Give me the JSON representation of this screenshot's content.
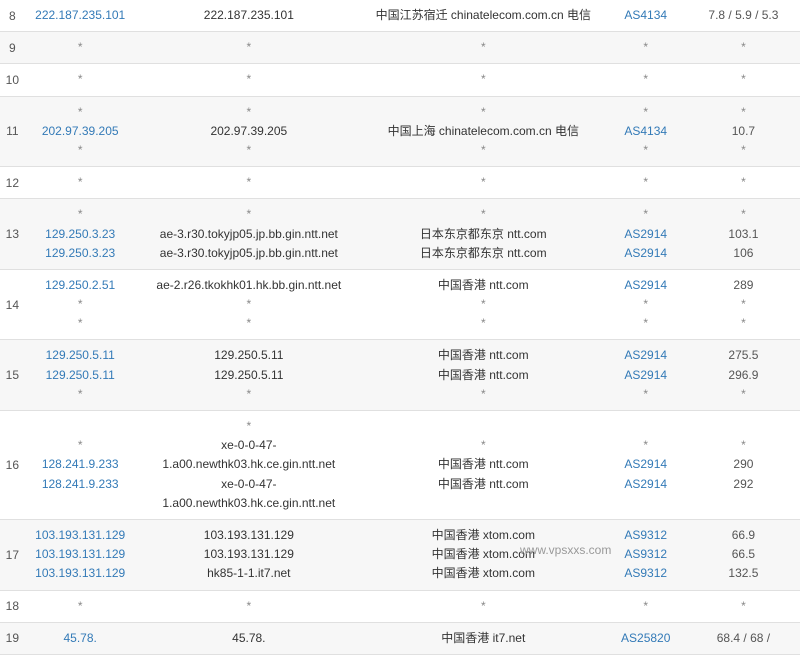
{
  "watermark": "www.vpsxxs.com",
  "colors": {
    "link": "#337ab7",
    "text": "#333",
    "muted": "#888",
    "border": "#e0e0e0",
    "altRow": "#f7f7f7"
  },
  "rows": [
    {
      "hop": "8",
      "alt": false,
      "ip": [
        {
          "v": "222.187.235.101",
          "link": true
        }
      ],
      "host": [
        {
          "v": "222.187.235.101"
        }
      ],
      "loc": [
        {
          "v": "中国江苏宿迁 chinatelecom.com.cn 电信"
        }
      ],
      "asn": [
        {
          "v": "AS4134",
          "link": true
        }
      ],
      "lat": [
        {
          "v": "7.8 / 5.9 / 5.3"
        }
      ]
    },
    {
      "hop": "9",
      "alt": true,
      "ip": [
        {
          "v": "*",
          "star": true
        }
      ],
      "host": [
        {
          "v": "*",
          "star": true
        }
      ],
      "loc": [
        {
          "v": "*",
          "star": true
        }
      ],
      "asn": [
        {
          "v": "*",
          "star": true
        }
      ],
      "lat": [
        {
          "v": "*",
          "star": true
        }
      ]
    },
    {
      "hop": "10",
      "alt": false,
      "ip": [
        {
          "v": "*",
          "star": true
        }
      ],
      "host": [
        {
          "v": "*",
          "star": true
        }
      ],
      "loc": [
        {
          "v": "*",
          "star": true
        }
      ],
      "asn": [
        {
          "v": "*",
          "star": true
        }
      ],
      "lat": [
        {
          "v": "*",
          "star": true
        }
      ]
    },
    {
      "hop": "11",
      "alt": true,
      "ip": [
        {
          "v": "*",
          "star": true
        },
        {
          "v": "202.97.39.205",
          "link": true
        },
        {
          "v": "*",
          "star": true
        }
      ],
      "host": [
        {
          "v": "*",
          "star": true
        },
        {
          "v": "202.97.39.205"
        },
        {
          "v": "*",
          "star": true
        }
      ],
      "loc": [
        {
          "v": "*",
          "star": true
        },
        {
          "v": "中国上海 chinatelecom.com.cn 电信"
        },
        {
          "v": "*",
          "star": true
        }
      ],
      "asn": [
        {
          "v": "*",
          "star": true
        },
        {
          "v": "AS4134",
          "link": true
        },
        {
          "v": "*",
          "star": true
        }
      ],
      "lat": [
        {
          "v": "*",
          "star": true
        },
        {
          "v": "10.7"
        },
        {
          "v": "*",
          "star": true
        }
      ]
    },
    {
      "hop": "12",
      "alt": false,
      "ip": [
        {
          "v": "*",
          "star": true
        }
      ],
      "host": [
        {
          "v": "*",
          "star": true
        }
      ],
      "loc": [
        {
          "v": "*",
          "star": true
        }
      ],
      "asn": [
        {
          "v": "*",
          "star": true
        }
      ],
      "lat": [
        {
          "v": "*",
          "star": true
        }
      ]
    },
    {
      "hop": "13",
      "alt": true,
      "ip": [
        {
          "v": "*",
          "star": true
        },
        {
          "v": "129.250.3.23",
          "link": true
        },
        {
          "v": "129.250.3.23",
          "link": true
        }
      ],
      "host": [
        {
          "v": "*",
          "star": true
        },
        {
          "v": "ae-3.r30.tokyjp05.jp.bb.gin.ntt.net"
        },
        {
          "v": "ae-3.r30.tokyjp05.jp.bb.gin.ntt.net"
        }
      ],
      "loc": [
        {
          "v": "*",
          "star": true
        },
        {
          "v": "日本东京都东京 ntt.com"
        },
        {
          "v": "日本东京都东京 ntt.com"
        }
      ],
      "asn": [
        {
          "v": "*",
          "star": true
        },
        {
          "v": "AS2914",
          "link": true
        },
        {
          "v": "AS2914",
          "link": true
        }
      ],
      "lat": [
        {
          "v": "*",
          "star": true
        },
        {
          "v": "103.1"
        },
        {
          "v": "106"
        }
      ]
    },
    {
      "hop": "14",
      "alt": false,
      "ip": [
        {
          "v": "129.250.2.51",
          "link": true
        },
        {
          "v": "*",
          "star": true
        },
        {
          "v": "*",
          "star": true
        }
      ],
      "host": [
        {
          "v": "ae-2.r26.tkokhk01.hk.bb.gin.ntt.net"
        },
        {
          "v": "*",
          "star": true
        },
        {
          "v": "*",
          "star": true
        }
      ],
      "loc": [
        {
          "v": "中国香港 ntt.com"
        },
        {
          "v": "*",
          "star": true
        },
        {
          "v": "*",
          "star": true
        }
      ],
      "asn": [
        {
          "v": "AS2914",
          "link": true
        },
        {
          "v": "*",
          "star": true
        },
        {
          "v": "*",
          "star": true
        }
      ],
      "lat": [
        {
          "v": "289"
        },
        {
          "v": "*",
          "star": true
        },
        {
          "v": "*",
          "star": true
        }
      ]
    },
    {
      "hop": "15",
      "alt": true,
      "ip": [
        {
          "v": "129.250.5.11",
          "link": true
        },
        {
          "v": "129.250.5.11",
          "link": true
        },
        {
          "v": "*",
          "star": true
        }
      ],
      "host": [
        {
          "v": "129.250.5.11"
        },
        {
          "v": "129.250.5.11"
        },
        {
          "v": "*",
          "star": true
        }
      ],
      "loc": [
        {
          "v": "中国香港 ntt.com"
        },
        {
          "v": "中国香港 ntt.com"
        },
        {
          "v": "*",
          "star": true
        }
      ],
      "asn": [
        {
          "v": "AS2914",
          "link": true
        },
        {
          "v": "AS2914",
          "link": true
        },
        {
          "v": "*",
          "star": true
        }
      ],
      "lat": [
        {
          "v": "275.5"
        },
        {
          "v": "296.9"
        },
        {
          "v": "*",
          "star": true
        }
      ]
    },
    {
      "hop": "16",
      "alt": false,
      "ip": [
        {
          "v": "*",
          "star": true
        },
        {
          "v": "128.241.9.233",
          "link": true
        },
        {
          "v": "128.241.9.233",
          "link": true
        }
      ],
      "host": [
        {
          "v": "*",
          "star": true
        },
        {
          "v": "xe-0-0-47-1.a00.newthk03.hk.ce.gin.ntt.net"
        },
        {
          "v": "xe-0-0-47-1.a00.newthk03.hk.ce.gin.ntt.net"
        }
      ],
      "loc": [
        {
          "v": "*",
          "star": true
        },
        {
          "v": "中国香港 ntt.com"
        },
        {
          "v": "中国香港 ntt.com"
        }
      ],
      "asn": [
        {
          "v": "*",
          "star": true
        },
        {
          "v": "AS2914",
          "link": true
        },
        {
          "v": "AS2914",
          "link": true
        }
      ],
      "lat": [
        {
          "v": "*",
          "star": true
        },
        {
          "v": "290"
        },
        {
          "v": "292"
        }
      ]
    },
    {
      "hop": "17",
      "alt": true,
      "ip": [
        {
          "v": "103.193.131.129",
          "link": true
        },
        {
          "v": "103.193.131.129",
          "link": true
        },
        {
          "v": "103.193.131.129",
          "link": true
        }
      ],
      "host": [
        {
          "v": "103.193.131.129"
        },
        {
          "v": "103.193.131.129"
        },
        {
          "v": "hk85-1-1.it7.net"
        }
      ],
      "loc": [
        {
          "v": "中国香港 xtom.com"
        },
        {
          "v": "中国香港 xtom.com"
        },
        {
          "v": "中国香港 xtom.com"
        }
      ],
      "asn": [
        {
          "v": "AS9312",
          "link": true
        },
        {
          "v": "AS9312",
          "link": true
        },
        {
          "v": "AS9312",
          "link": true
        }
      ],
      "lat": [
        {
          "v": "66.9"
        },
        {
          "v": "66.5"
        },
        {
          "v": "132.5"
        }
      ]
    },
    {
      "hop": "18",
      "alt": false,
      "ip": [
        {
          "v": "*",
          "star": true
        }
      ],
      "host": [
        {
          "v": "*",
          "star": true
        }
      ],
      "loc": [
        {
          "v": "*",
          "star": true
        }
      ],
      "asn": [
        {
          "v": "*",
          "star": true
        }
      ],
      "lat": [
        {
          "v": "*",
          "star": true
        }
      ]
    },
    {
      "hop": "19",
      "alt": true,
      "ip": [
        {
          "v": "45.78.",
          "link": true
        }
      ],
      "host": [
        {
          "v": "45.78."
        }
      ],
      "loc": [
        {
          "v": "中国香港 it7.net"
        }
      ],
      "asn": [
        {
          "v": "AS25820",
          "link": true
        }
      ],
      "lat": [
        {
          "v": "68.4 / 68 /"
        }
      ]
    }
  ]
}
